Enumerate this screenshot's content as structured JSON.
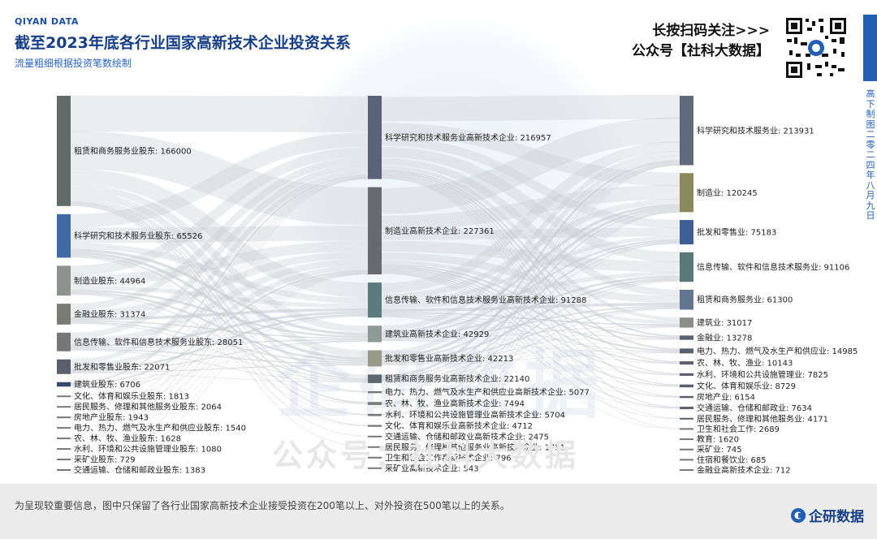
{
  "header": {
    "brand": "QIYAN DATA",
    "title": "截至2023年底各行业国家高新技术企业投资关系",
    "subtitle": "流量粗细根据投资笔数绘制",
    "qr_line1": "长按扫码关注>>>",
    "qr_line2": "公众号【社科大数据】",
    "vertical_text": "高下制图 二零二四年八月九日"
  },
  "watermark": {
    "logo": "企研数据",
    "text": "公众号：社科大数据"
  },
  "footer": {
    "note": "为呈现较重要信息，图中只保留了各行业国家高新技术企业接受投资在200笔以上、对外投资在500笔以上的关系。",
    "logo_text": "企研数据"
  },
  "colors": {
    "title": "#163f86",
    "accent": "#1f5fb4",
    "link": "#c9ccd2"
  },
  "chart_data": {
    "type": "sankey",
    "columns": [
      {
        "nodes": [
          {
            "label": "租赁和商务服务业股东",
            "value": 166000,
            "color": "#5f6b66"
          },
          {
            "label": "科学研究和技术服务业股东",
            "value": 65526,
            "color": "#3e6aa5"
          },
          {
            "label": "制造业股东",
            "value": 44964,
            "color": "#8e928e"
          },
          {
            "label": "金融业股东",
            "value": 31374,
            "color": "#7a7a74"
          },
          {
            "label": "信息传输、软件和信息技术服务业股东",
            "value": 28051,
            "color": "#777"
          },
          {
            "label": "批发和零售业股东",
            "value": 22071,
            "color": "#5a5f6a"
          },
          {
            "label": "建筑业股东",
            "value": 6706,
            "color": "#36496b"
          },
          {
            "label": "文化、体育和娱乐业股东",
            "value": 1813,
            "color": "#777"
          },
          {
            "label": "居民服务、修理和其他服务业股东",
            "value": 2064,
            "color": "#777"
          },
          {
            "label": "房地产业股东",
            "value": 1943,
            "color": "#777"
          },
          {
            "label": "电力、热力、燃气及水生产和供应业股东",
            "value": 1540,
            "color": "#777"
          },
          {
            "label": "农、林、牧、渔业股东",
            "value": 1628,
            "color": "#777"
          },
          {
            "label": "水利、环境和公共设施管理业股东",
            "value": 1080,
            "color": "#777"
          },
          {
            "label": "采矿业股东",
            "value": 729,
            "color": "#777"
          },
          {
            "label": "交通运输、仓储和邮政业股东",
            "value": 1383,
            "color": "#777"
          }
        ]
      },
      {
        "nodes": [
          {
            "label": "科学研究和技术服务业高新技术企业",
            "value": 216957,
            "color": "#5a6479"
          },
          {
            "label": "制造业高新技术企业",
            "value": 227361,
            "color": "#676a70"
          },
          {
            "label": "信息传输、软件和信息技术服务业高新技术企业",
            "value": 91288,
            "color": "#5d7a7e"
          },
          {
            "label": "建筑业高新技术企业",
            "value": 42929,
            "color": "#8e9a96"
          },
          {
            "label": "批发和零售业高新技术企业",
            "value": 42213,
            "color": "#9a9888"
          },
          {
            "label": "租赁和商务服务业高新技术企业",
            "value": 22140,
            "color": "#5e6670"
          },
          {
            "label": "电力、热力、燃气及水生产和供应业高新技术企业",
            "value": 5077,
            "color": "#777"
          },
          {
            "label": "农、林、牧、渔业高新技术企业",
            "value": 7494,
            "color": "#777"
          },
          {
            "label": "水利、环境和公共设施管理业高新技术企业",
            "value": 5704,
            "color": "#777"
          },
          {
            "label": "文化、体育和娱乐业高新技术企业",
            "value": 4712,
            "color": "#777"
          },
          {
            "label": "交通运输、仓储和邮政业高新技术企业",
            "value": 2475,
            "color": "#777"
          },
          {
            "label": "居民服务、修理和其他服务业高新技术企业",
            "value": 1751,
            "color": "#777"
          },
          {
            "label": "卫生和社会工作高新技术企业",
            "value": 796,
            "color": "#777"
          },
          {
            "label": "采矿业高新技术企业",
            "value": 543,
            "color": "#777"
          }
        ]
      },
      {
        "nodes": [
          {
            "label": "科学研究和技术服务业",
            "value": 213931,
            "color": "#5f6b7a"
          },
          {
            "label": "制造业",
            "value": 120245,
            "color": "#8a8a5e"
          },
          {
            "label": "批发和零售业",
            "value": 75183,
            "color": "#3d5f95"
          },
          {
            "label": "信息传输、软件和信息技术服务业",
            "value": 91106,
            "color": "#5a7a7a"
          },
          {
            "label": "租赁和商务服务业",
            "value": 61300,
            "color": "#627690"
          },
          {
            "label": "建筑业",
            "value": 31017,
            "color": "#8a9088"
          },
          {
            "label": "金融业",
            "value": 13278,
            "color": "#5a6070"
          },
          {
            "label": "电力、热力、燃气及水生产和供应业",
            "value": 14985,
            "color": "#5a6070"
          },
          {
            "label": "农、林、牧、渔业",
            "value": 10143,
            "color": "#5a6070"
          },
          {
            "label": "水利、环境和公共设施管理业",
            "value": 7825,
            "color": "#5a6070"
          },
          {
            "label": "文化、体育和娱乐业",
            "value": 8729,
            "color": "#5a6070"
          },
          {
            "label": "房地产业",
            "value": 6154,
            "color": "#5a6070"
          },
          {
            "label": "交通运输、仓储和邮政业",
            "value": 7634,
            "color": "#5a6070"
          },
          {
            "label": "居民服务、修理和其他服务业",
            "value": 4171,
            "color": "#5a6070"
          },
          {
            "label": "卫生和社会工作",
            "value": 2689,
            "color": "#777"
          },
          {
            "label": "教育",
            "value": 1620,
            "color": "#777"
          },
          {
            "label": "采矿业",
            "value": 745,
            "color": "#777"
          },
          {
            "label": "住宿和餐饮业",
            "value": 685,
            "color": "#777"
          },
          {
            "label": "金融业高新技术企业",
            "value": 712,
            "color": "#777"
          }
        ]
      }
    ]
  }
}
